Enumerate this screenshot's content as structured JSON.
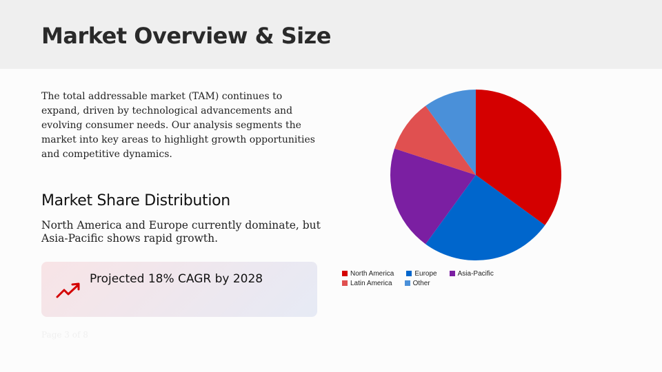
{
  "header": {
    "title": "Market Overview & Size"
  },
  "intro": {
    "text": "The total addressable market (TAM) continues to expand, driven by technological advancements and evolving consumer needs. Our analysis segments the market into key areas to highlight growth opportunities and competitive dynamics."
  },
  "section": {
    "title": "Market Share Distribution",
    "text": "North America and Europe currently dominate, but Asia-Pacific shows rapid growth."
  },
  "callout": {
    "icon": "trending-up-icon",
    "text": "Projected 18% CAGR by 2028",
    "color": "#d40000"
  },
  "footer": {
    "page": "Page 3 of 8"
  },
  "chart_data": {
    "type": "pie",
    "title": "",
    "categories": [
      "North America",
      "Europe",
      "Asia-Pacific",
      "Latin America",
      "Other"
    ],
    "values": [
      35,
      25,
      20,
      10,
      10
    ],
    "colors": [
      "#d40000",
      "#0066cc",
      "#7b1fa2",
      "#e05050",
      "#4a90d9"
    ],
    "start_angle": "top, clockwise",
    "legend_position": "bottom"
  }
}
